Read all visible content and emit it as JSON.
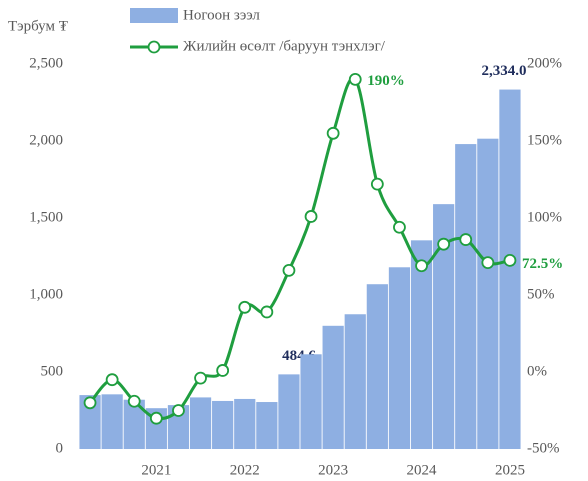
{
  "chart_data": {
    "type": "bar-line",
    "y_axis_label": "Тэрбум ₮",
    "categories": [
      null,
      null,
      null,
      "2021",
      null,
      null,
      null,
      "2022",
      null,
      null,
      null,
      "2023",
      null,
      null,
      null,
      "2024",
      null,
      null,
      null,
      "2025"
    ],
    "series": [
      {
        "name": "Ногоон зээл",
        "type": "bar",
        "color": "#8eafe2",
        "values": [
          350,
          355,
          320,
          265,
          285,
          335,
          312,
          325,
          305,
          484.6,
          615,
          800,
          875,
          1070,
          1180,
          1355,
          1590,
          1980,
          2015,
          2334
        ],
        "value_labels": [
          null,
          null,
          null,
          null,
          null,
          null,
          null,
          null,
          null,
          "484.6",
          null,
          null,
          null,
          null,
          null,
          null,
          null,
          null,
          null,
          "2,334.0"
        ]
      },
      {
        "name": "Жилийн өсөлт /баруун тэнхлэг/",
        "type": "line",
        "axis": "y2",
        "color": "#1f9e3f",
        "values": [
          -20,
          -5,
          -19,
          -30,
          -25,
          -4,
          1,
          42,
          39,
          66,
          101,
          155,
          190,
          122,
          94,
          69,
          83,
          86,
          71,
          72.5
        ],
        "value_labels": [
          null,
          null,
          null,
          null,
          null,
          null,
          null,
          null,
          null,
          null,
          null,
          null,
          "190%",
          null,
          null,
          null,
          null,
          null,
          null,
          "72.5%"
        ]
      }
    ],
    "ylim": [
      0,
      2500
    ],
    "yticks": [
      0,
      500,
      {
        "value": 1000,
        "label": "1,000"
      },
      {
        "value": 1500,
        "label": "1,500"
      },
      {
        "value": 2000,
        "label": "2,000"
      },
      {
        "value": 2500,
        "label": "2,500"
      }
    ],
    "y2lim": [
      -50,
      200
    ],
    "y2ticks": [
      {
        "value": -50,
        "label": "-50%"
      },
      {
        "value": 0,
        "label": "0%"
      },
      {
        "value": 50,
        "label": "50%"
      },
      {
        "value": 100,
        "label": "100%"
      },
      {
        "value": 150,
        "label": "150%"
      },
      {
        "value": 200,
        "label": "200%"
      }
    ],
    "grid": false
  }
}
